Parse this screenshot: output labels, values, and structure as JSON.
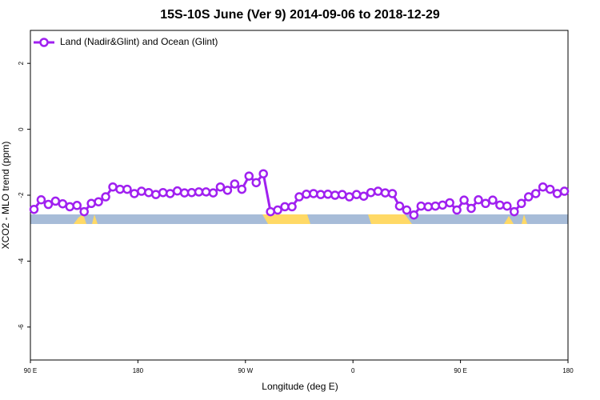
{
  "chart_data": {
    "type": "line",
    "title": "15S-10S June (Ver 9)   2014-09-06 to 2018-12-29",
    "x_label": "Longitude (deg E)",
    "y_label": "XCO2 - MLO trend (ppm)",
    "xlim": [
      90,
      540
    ],
    "ylim": [
      -7,
      3
    ],
    "xticks": [
      {
        "value": 90,
        "label": "90 E"
      },
      180,
      {
        "value": 270,
        "label": "90 W"
      },
      {
        "value": 360,
        "label": "0"
      },
      {
        "value": 450,
        "label": "90 E"
      },
      {
        "value": 540,
        "label": "180"
      }
    ],
    "yticks": [
      -6,
      -4,
      -2,
      0,
      2
    ],
    "x": [
      93,
      99,
      105,
      111,
      117,
      123,
      129,
      135,
      141,
      147,
      153,
      159,
      165,
      171,
      177,
      183,
      189,
      195,
      201,
      207,
      213,
      219,
      225,
      231,
      237,
      243,
      249,
      255,
      261,
      267,
      273,
      279,
      285,
      291,
      297,
      303,
      309,
      315,
      321,
      327,
      333,
      339,
      345,
      351,
      357,
      363,
      369,
      375,
      381,
      387,
      393,
      399,
      405,
      411,
      417,
      423,
      429,
      435,
      441,
      447,
      453,
      459,
      465,
      471,
      477,
      483,
      489,
      495,
      501,
      507,
      513,
      519,
      525,
      531,
      537
    ],
    "series": [
      {
        "name": "Land (Nadir&Glint) and Ocean (Glint)",
        "color": "#a020f0",
        "values": [
          -2.43,
          -2.14,
          -2.28,
          -2.18,
          -2.26,
          -2.35,
          -2.31,
          -2.5,
          -2.25,
          -2.2,
          -2.05,
          -1.75,
          -1.82,
          -1.82,
          -1.95,
          -1.88,
          -1.92,
          -1.98,
          -1.92,
          -1.95,
          -1.87,
          -1.93,
          -1.92,
          -1.9,
          -1.9,
          -1.93,
          -1.75,
          -1.85,
          -1.66,
          -1.82,
          -1.42,
          -1.62,
          -1.35,
          -2.5,
          -2.45,
          -2.35,
          -2.35,
          -2.05,
          -1.97,
          -1.95,
          -1.98,
          -1.97,
          -2.0,
          -1.98,
          -2.05,
          -1.98,
          -2.03,
          -1.92,
          -1.88,
          -1.93,
          -1.95,
          -2.33,
          -2.45,
          -2.6,
          -2.33,
          -2.35,
          -2.33,
          -2.3,
          -2.23,
          -2.45,
          -2.15,
          -2.4,
          -2.14,
          -2.25,
          -2.15,
          -2.3,
          -2.33,
          -2.5,
          -2.25,
          -2.05,
          -1.95,
          -1.75,
          -1.82,
          -1.95,
          -1.88
        ]
      }
    ]
  }
}
